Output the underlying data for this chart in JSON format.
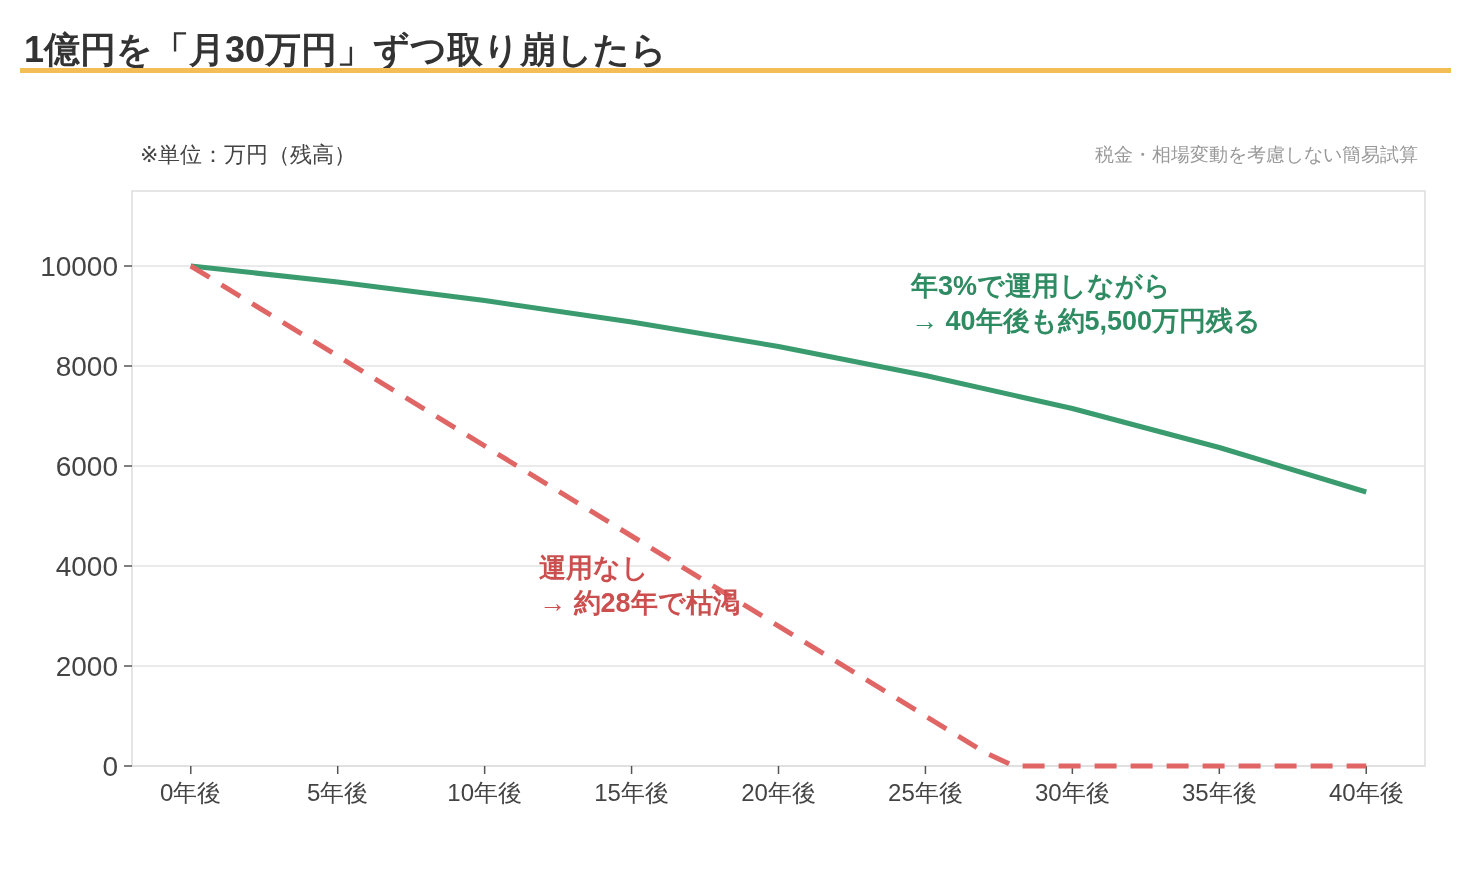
{
  "chart_data": {
    "type": "line",
    "title": "1億円を「月30万円」ずつ取り崩したら",
    "x": [
      0,
      5,
      10,
      15,
      20,
      25,
      30,
      35,
      40
    ],
    "series": [
      {
        "color": "#3a9c6e",
        "values": [
          10000,
          9680,
          9310,
          8880,
          8390,
          7810,
          7150,
          6370,
          5480
        ],
        "line_style": "solid"
      },
      {
        "color": "#e06666",
        "x": [
          0,
          27,
          28,
          40
        ],
        "values": [
          10000,
          280,
          0,
          0
        ],
        "line_style": "dashed"
      }
    ],
    "xlim": [
      -2,
      42
    ],
    "xticks": [
      {
        "value": 0,
        "label": "0年後"
      },
      {
        "value": 5,
        "label": "5年後"
      },
      {
        "value": 10,
        "label": "10年後"
      },
      {
        "value": 15,
        "label": "15年後"
      },
      {
        "value": 20,
        "label": "20年後"
      },
      {
        "value": 25,
        "label": "25年後"
      },
      {
        "value": 30,
        "label": "30年後"
      },
      {
        "value": 35,
        "label": "35年後"
      },
      {
        "value": 40,
        "label": "40年後"
      }
    ],
    "ylim": [
      0,
      11500
    ],
    "yticks": [
      0,
      2000,
      4000,
      6000,
      8000,
      10000
    ],
    "grid": "y",
    "annotations": [
      "年3%で運用しながら\n→ 40年後も約5,500万円残る",
      "運用なし\n→ 約28年で枯渇",
      "※単位：万円（残高）",
      "税金・相場変動を考慮しない簡易試算"
    ]
  }
}
